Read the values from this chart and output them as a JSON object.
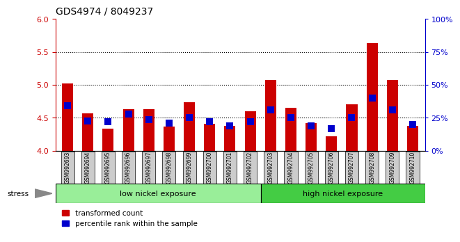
{
  "title": "GDS4974 / 8049237",
  "samples": [
    "GSM992693",
    "GSM992694",
    "GSM992695",
    "GSM992696",
    "GSM992697",
    "GSM992698",
    "GSM992699",
    "GSM992700",
    "GSM992701",
    "GSM992702",
    "GSM992703",
    "GSM992704",
    "GSM992705",
    "GSM992706",
    "GSM992707",
    "GSM992708",
    "GSM992709",
    "GSM992710"
  ],
  "red_values": [
    5.02,
    4.57,
    4.33,
    4.63,
    4.63,
    4.37,
    4.73,
    4.41,
    4.38,
    4.6,
    5.07,
    4.65,
    4.42,
    4.22,
    4.7,
    5.63,
    5.07,
    4.38
  ],
  "blue_values": [
    4.68,
    4.45,
    4.44,
    4.55,
    4.47,
    4.42,
    4.5,
    4.44,
    4.38,
    4.44,
    4.62,
    4.5,
    4.38,
    4.33,
    4.5,
    4.8,
    4.62,
    4.4
  ],
  "ylim": [
    4.0,
    6.0
  ],
  "yticks_left": [
    4.0,
    4.5,
    5.0,
    5.5,
    6.0
  ],
  "yticks_right": [
    0,
    25,
    50,
    75,
    100
  ],
  "group1_label": "low nickel exposure",
  "group2_label": "high nickel exposure",
  "group1_count": 10,
  "stress_label": "stress",
  "legend1": "transformed count",
  "legend2": "percentile rank within the sample",
  "bar_color_red": "#cc0000",
  "bar_color_blue": "#0000cc",
  "plot_bg": "#ffffff",
  "tick_box_bg": "#cccccc",
  "group1_bg": "#99ee99",
  "group2_bg": "#44cc44",
  "left_axis_color": "#cc0000",
  "right_axis_color": "#0000cc",
  "bar_width": 0.55,
  "blue_marker_size": 50
}
